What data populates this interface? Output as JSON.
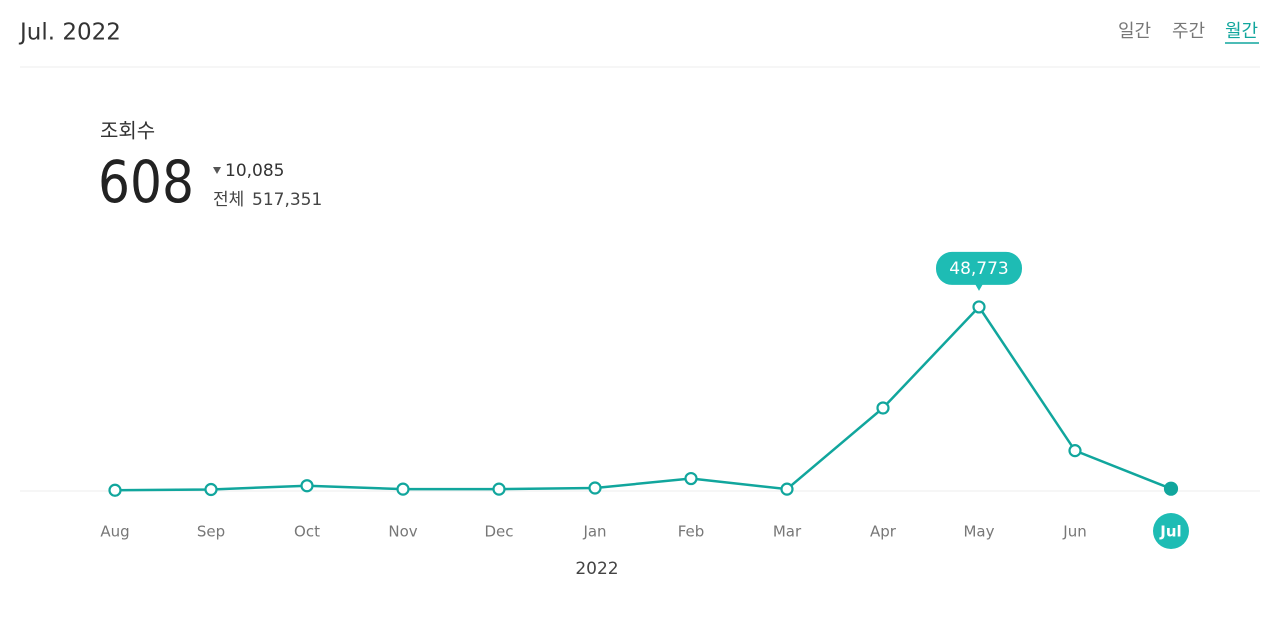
{
  "header": {
    "title": "Jul. 2022",
    "tabs": [
      "일간",
      "주간",
      "월간"
    ],
    "active_tab": 2
  },
  "summary": {
    "label": "조회수",
    "value": "608",
    "change": "10,085",
    "total_label": "전체",
    "total": "517,351"
  },
  "chart_data": {
    "type": "line",
    "categories": [
      "Aug",
      "Sep",
      "Oct",
      "Nov",
      "Dec",
      "Jan",
      "Feb",
      "Mar",
      "Apr",
      "May",
      "Jun",
      "Jul"
    ],
    "values": [
      200,
      400,
      1400,
      500,
      500,
      800,
      3300,
      500,
      22000,
      48773,
      10693,
      608
    ],
    "value_labels": [
      null,
      null,
      null,
      null,
      null,
      null,
      null,
      null,
      null,
      "48,773",
      null,
      null
    ],
    "x_label": "2022",
    "color": "#11a69d",
    "highlight_index": 11,
    "tooltip_index": 9,
    "ylim": [
      0,
      50000
    ]
  }
}
